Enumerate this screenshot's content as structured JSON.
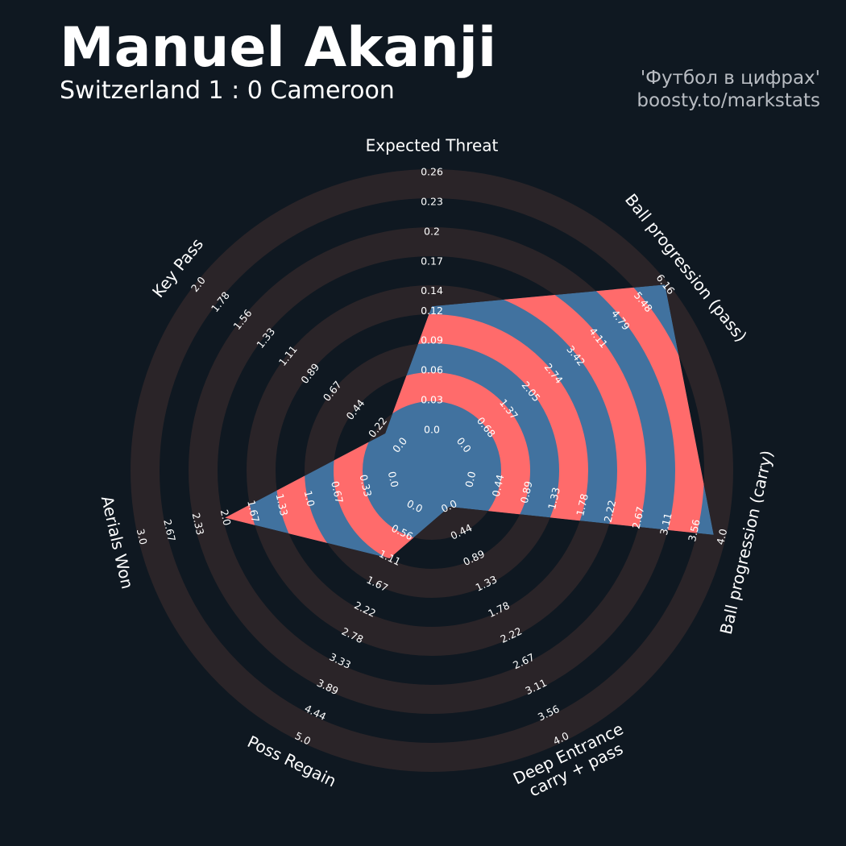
{
  "chart_data": {
    "type": "radar",
    "title": "Manuel Akanji",
    "subtitle": "Switzerland 1 : 0 Cameroon",
    "credit": [
      "'Футбол в цифрах'",
      "boosty.to/markstats"
    ],
    "categories": [
      "Expected Threat",
      "Ball progression (pass)",
      "Ball progression (carry)",
      "Deep Entrance\ncarry + pass",
      "Poss Regain",
      "Aerials Won",
      "Key Pass"
    ],
    "values": [
      0.125,
      6.16,
      3.86,
      0,
      1.11,
      2.0,
      0.15
    ],
    "ranges": [
      [
        0,
        0.26
      ],
      [
        0,
        6.16
      ],
      [
        0,
        4
      ],
      [
        0,
        4
      ],
      [
        0,
        5
      ],
      [
        0,
        3
      ],
      [
        0,
        2
      ]
    ],
    "ticks": [
      [
        {
          "value": 0,
          "label": "0.0"
        },
        0.03,
        0.06,
        0.09,
        0.12,
        0.14,
        0.17,
        0.2,
        0.23,
        0.26
      ],
      [
        {
          "value": 0,
          "label": "0.0"
        },
        0.68,
        1.37,
        2.05,
        2.74,
        3.42,
        4.11,
        4.79,
        5.48,
        6.16
      ],
      [
        {
          "value": 0,
          "label": "0.0"
        },
        0.44,
        0.89,
        1.33,
        1.78,
        2.22,
        2.67,
        3.11,
        3.56,
        {
          "value": 4,
          "label": "4.0"
        }
      ],
      [
        {
          "value": 0,
          "label": "0.0"
        },
        0.44,
        0.89,
        1.33,
        1.78,
        2.22,
        2.67,
        3.11,
        3.56,
        {
          "value": 4,
          "label": "4.0"
        }
      ],
      [
        {
          "value": 0,
          "label": "0.0"
        },
        0.56,
        1.11,
        1.67,
        2.22,
        2.78,
        3.33,
        3.89,
        4.44,
        {
          "value": 5,
          "label": "5.0"
        }
      ],
      [
        {
          "value": 0,
          "label": "0.0"
        },
        0.33,
        0.67,
        {
          "value": 1,
          "label": "1.0"
        },
        1.33,
        1.67,
        {
          "value": 2,
          "label": "2.0"
        },
        2.33,
        2.67,
        {
          "value": 3,
          "label": "3.0"
        }
      ],
      [
        {
          "value": 0,
          "label": "0.0"
        },
        0.22,
        0.44,
        0.67,
        0.89,
        1.11,
        1.33,
        1.56,
        1.78,
        {
          "value": 2,
          "label": "2.0"
        }
      ]
    ],
    "color": "#41729f",
    "alt_color": "#ff6b6b",
    "ring_color": "#2a2428"
  }
}
